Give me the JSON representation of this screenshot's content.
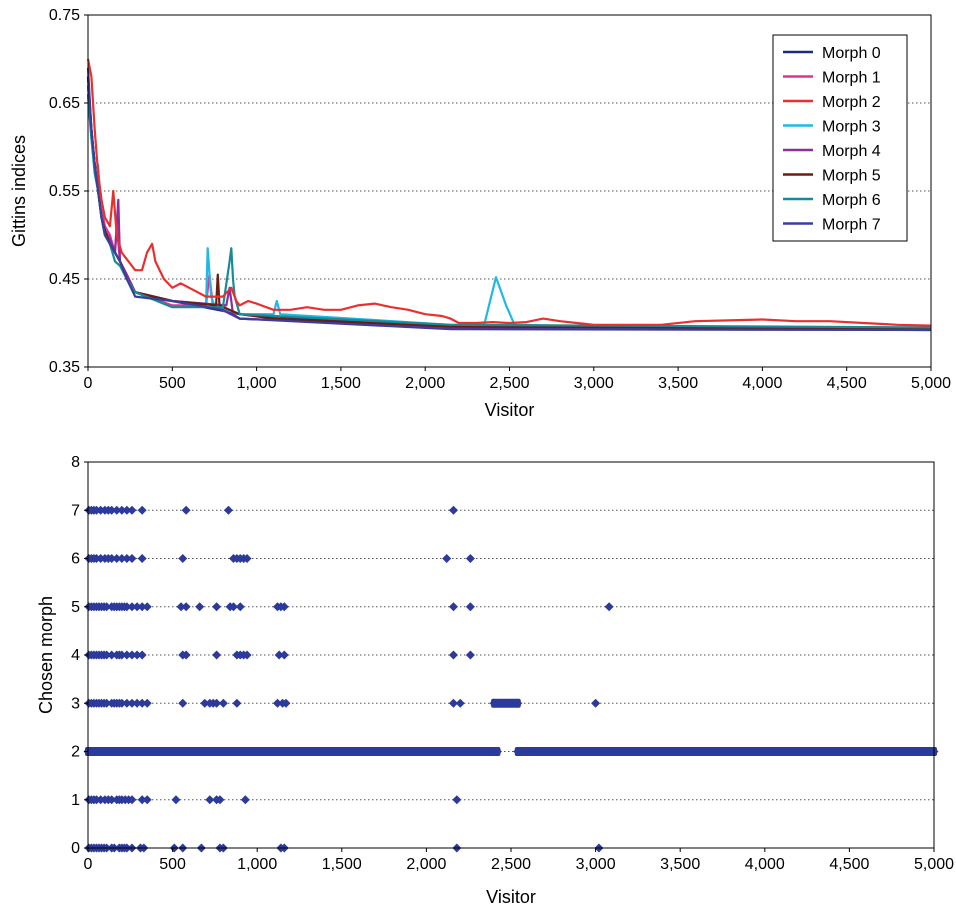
{
  "chart_data": [
    {
      "type": "line",
      "title": "",
      "xlabel": "Visitor",
      "ylabel": "Gittins indices",
      "xlim": [
        0,
        5000
      ],
      "ylim": [
        0.35,
        0.75
      ],
      "x_ticks": [
        0,
        500,
        1000,
        1500,
        2000,
        2500,
        3000,
        3500,
        4000,
        4500,
        5000
      ],
      "x_tick_labels": [
        "0",
        "500",
        "1,000",
        "1,500",
        "2,000",
        "2,500",
        "3,000",
        "3,500",
        "4,000",
        "4,500",
        "5,000"
      ],
      "y_ticks": [
        0.35,
        0.45,
        0.55,
        0.65,
        0.75
      ],
      "y_tick_labels": [
        "0.35",
        "0.45",
        "0.55",
        "0.65",
        "0.75"
      ],
      "grid": "horizontal dotted",
      "legend_position": "top-right",
      "series": [
        {
          "name": "Morph 0",
          "color": "#1f2a7a",
          "x": [
            0,
            20,
            40,
            60,
            80,
            100,
            130,
            160,
            190,
            230,
            280,
            500,
            900,
            2150,
            5000
          ],
          "y": [
            0.68,
            0.62,
            0.58,
            0.55,
            0.52,
            0.5,
            0.49,
            0.48,
            0.47,
            0.45,
            0.435,
            0.425,
            0.41,
            0.395,
            0.392
          ]
        },
        {
          "name": "Morph 1",
          "color": "#e0338f",
          "x": [
            0,
            20,
            40,
            60,
            80,
            100,
            130,
            160,
            170,
            190,
            230,
            280,
            500,
            700,
            720,
            740,
            900,
            2150,
            5000
          ],
          "y": [
            0.67,
            0.62,
            0.58,
            0.55,
            0.53,
            0.51,
            0.5,
            0.48,
            0.51,
            0.47,
            0.455,
            0.435,
            0.42,
            0.42,
            0.455,
            0.42,
            0.405,
            0.395,
            0.393
          ]
        },
        {
          "name": "Morph 2",
          "color": "#e8302f",
          "x": [
            0,
            20,
            40,
            60,
            80,
            100,
            130,
            150,
            170,
            200,
            240,
            280,
            320,
            350,
            380,
            400,
            450,
            500,
            550,
            600,
            700,
            800,
            850,
            880,
            900,
            950,
            1000,
            1100,
            1200,
            1300,
            1400,
            1500,
            1600,
            1700,
            1800,
            1900,
            2000,
            2100,
            2150,
            2200,
            2300,
            2400,
            2500,
            2600,
            2700,
            2800,
            2900,
            3000,
            3200,
            3400,
            3600,
            3800,
            4000,
            4200,
            4400,
            4600,
            4800,
            5000
          ],
          "y": [
            0.7,
            0.68,
            0.62,
            0.57,
            0.54,
            0.52,
            0.51,
            0.55,
            0.5,
            0.48,
            0.47,
            0.46,
            0.46,
            0.48,
            0.49,
            0.47,
            0.45,
            0.44,
            0.445,
            0.44,
            0.43,
            0.43,
            0.44,
            0.425,
            0.42,
            0.425,
            0.422,
            0.415,
            0.415,
            0.418,
            0.415,
            0.415,
            0.42,
            0.422,
            0.418,
            0.415,
            0.41,
            0.408,
            0.405,
            0.4,
            0.4,
            0.401,
            0.4,
            0.401,
            0.405,
            0.402,
            0.4,
            0.398,
            0.398,
            0.398,
            0.402,
            0.403,
            0.404,
            0.402,
            0.402,
            0.4,
            0.398,
            0.397
          ]
        },
        {
          "name": "Morph 3",
          "color": "#21b8e3",
          "x": [
            0,
            20,
            40,
            60,
            80,
            100,
            130,
            160,
            190,
            230,
            280,
            500,
            700,
            710,
            730,
            750,
            900,
            1100,
            1120,
            1140,
            2150,
            2350,
            2420,
            2480,
            2530,
            3000,
            5000
          ],
          "y": [
            0.66,
            0.61,
            0.575,
            0.58,
            0.52,
            0.5,
            0.49,
            0.48,
            0.47,
            0.45,
            0.435,
            0.425,
            0.42,
            0.485,
            0.43,
            0.42,
            0.41,
            0.41,
            0.425,
            0.41,
            0.398,
            0.398,
            0.452,
            0.42,
            0.398,
            0.396,
            0.394
          ]
        },
        {
          "name": "Morph 4",
          "color": "#8a2f9e",
          "x": [
            0,
            20,
            40,
            60,
            80,
            100,
            130,
            160,
            180,
            190,
            230,
            280,
            500,
            820,
            840,
            860,
            900,
            2150,
            5000
          ],
          "y": [
            0.67,
            0.62,
            0.58,
            0.55,
            0.52,
            0.505,
            0.495,
            0.48,
            0.54,
            0.47,
            0.455,
            0.435,
            0.425,
            0.42,
            0.44,
            0.41,
            0.405,
            0.395,
            0.393
          ]
        },
        {
          "name": "Morph 5",
          "color": "#6b1d12",
          "x": [
            0,
            20,
            40,
            60,
            80,
            100,
            130,
            160,
            190,
            230,
            280,
            500,
            760,
            770,
            780,
            900,
            1100,
            2150,
            5000
          ],
          "y": [
            0.68,
            0.62,
            0.58,
            0.55,
            0.52,
            0.505,
            0.49,
            0.48,
            0.47,
            0.45,
            0.435,
            0.425,
            0.42,
            0.455,
            0.42,
            0.41,
            0.405,
            0.396,
            0.394
          ]
        },
        {
          "name": "Morph 6",
          "color": "#1a8a96",
          "x": [
            0,
            20,
            40,
            60,
            80,
            100,
            130,
            160,
            190,
            230,
            280,
            500,
            800,
            840,
            850,
            860,
            870,
            900,
            2150,
            5000
          ],
          "y": [
            0.66,
            0.61,
            0.57,
            0.55,
            0.52,
            0.5,
            0.49,
            0.47,
            0.465,
            0.45,
            0.435,
            0.418,
            0.418,
            0.47,
            0.485,
            0.45,
            0.43,
            0.41,
            0.398,
            0.395
          ]
        },
        {
          "name": "Morph 7",
          "color": "#3a3f9e",
          "x": [
            0,
            20,
            40,
            60,
            80,
            100,
            130,
            160,
            190,
            230,
            280,
            500,
            800,
            900,
            2150,
            5000
          ],
          "y": [
            0.69,
            0.62,
            0.58,
            0.55,
            0.52,
            0.5,
            0.49,
            0.48,
            0.47,
            0.45,
            0.43,
            0.425,
            0.415,
            0.405,
            0.393,
            0.392
          ]
        }
      ]
    },
    {
      "type": "scatter",
      "title": "",
      "xlabel": "Visitor",
      "ylabel": "Chosen morph",
      "xlim": [
        0,
        5000
      ],
      "ylim": [
        0,
        8
      ],
      "x_ticks": [
        0,
        500,
        1000,
        1500,
        2000,
        2500,
        3000,
        3500,
        4000,
        4500,
        5000
      ],
      "x_tick_labels": [
        "0",
        "500",
        "1,000",
        "1,500",
        "2,000",
        "2,500",
        "3,000",
        "3,500",
        "4,000",
        "4,500",
        "5,000"
      ],
      "y_ticks": [
        0,
        1,
        2,
        3,
        4,
        5,
        6,
        7,
        8
      ],
      "y_tick_labels": [
        "0",
        "1",
        "2",
        "3",
        "4",
        "5",
        "6",
        "7",
        "8"
      ],
      "grid": "horizontal dotted",
      "marker": "diamond",
      "marker_color": "#2b3a9b",
      "rows": [
        {
          "morph": 0,
          "x": [
            5,
            20,
            35,
            50,
            65,
            80,
            95,
            110,
            140,
            155,
            185,
            200,
            215,
            230,
            260,
            310,
            330,
            510,
            560,
            670,
            780,
            800,
            1140,
            1160,
            2180,
            3020
          ],
          "runs": []
        },
        {
          "morph": 1,
          "x": [
            5,
            20,
            35,
            50,
            75,
            100,
            120,
            140,
            170,
            185,
            200,
            220,
            240,
            260,
            320,
            350,
            520,
            720,
            760,
            780,
            930,
            2180
          ],
          "runs": []
        },
        {
          "morph": 2,
          "x": [],
          "runs": [
            [
              0,
              2420
            ],
            [
              2540,
              5000
            ]
          ]
        },
        {
          "morph": 3,
          "x": [
            5,
            20,
            35,
            50,
            65,
            80,
            95,
            110,
            140,
            155,
            170,
            185,
            200,
            230,
            260,
            290,
            320,
            350,
            560,
            690,
            720,
            740,
            760,
            800,
            880,
            1120,
            1150,
            1170,
            2160,
            2200,
            3000
          ],
          "runs": [
            [
              2400,
              2540
            ]
          ]
        },
        {
          "morph": 4,
          "x": [
            5,
            20,
            35,
            50,
            65,
            80,
            95,
            110,
            140,
            170,
            185,
            200,
            230,
            260,
            290,
            320,
            560,
            580,
            760,
            880,
            900,
            920,
            940,
            1130,
            1160,
            2160,
            2260
          ],
          "runs": []
        },
        {
          "morph": 5,
          "x": [
            5,
            20,
            35,
            50,
            65,
            80,
            95,
            110,
            140,
            155,
            170,
            185,
            200,
            215,
            230,
            260,
            290,
            320,
            350,
            550,
            580,
            660,
            760,
            840,
            860,
            900,
            1120,
            1140,
            1160,
            2160,
            2260,
            3080
          ],
          "runs": []
        },
        {
          "morph": 6,
          "x": [
            5,
            20,
            35,
            50,
            75,
            100,
            120,
            140,
            170,
            200,
            230,
            260,
            320,
            560,
            860,
            880,
            900,
            920,
            940,
            2120,
            2260
          ],
          "runs": []
        },
        {
          "morph": 7,
          "x": [
            5,
            20,
            35,
            50,
            75,
            100,
            120,
            140,
            170,
            200,
            230,
            260,
            320,
            580,
            830,
            2160
          ],
          "runs": []
        }
      ]
    }
  ]
}
